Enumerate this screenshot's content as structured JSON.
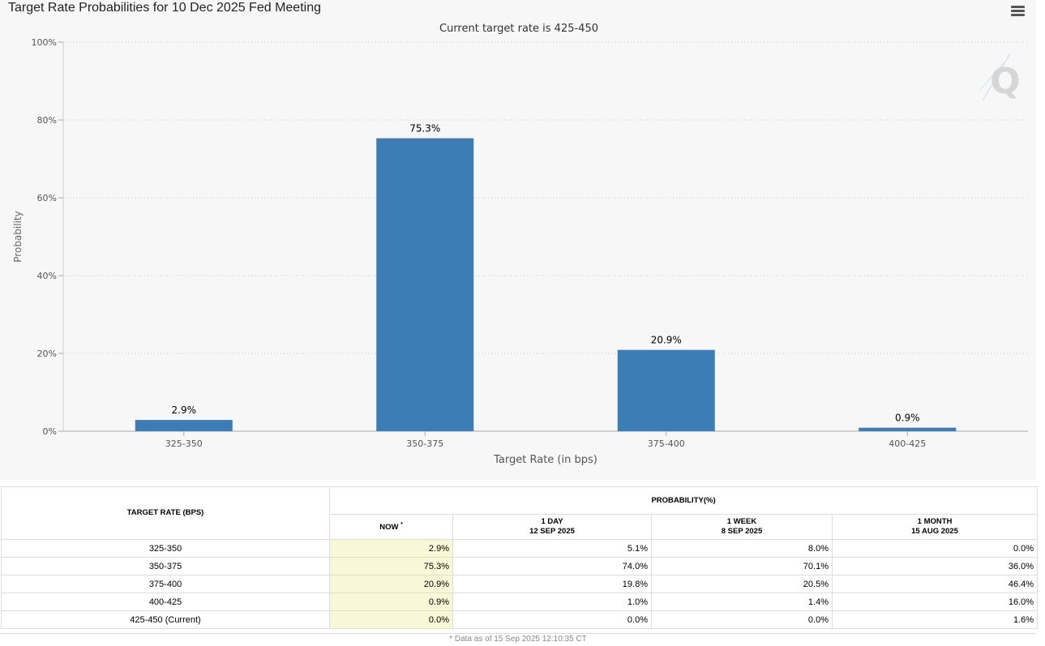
{
  "chart_data": {
    "type": "bar",
    "title": "Target Rate Probabilities for 10 Dec 2025 Fed Meeting",
    "subtitle": "Current target rate is 425-450",
    "categories": [
      "325-350",
      "350-375",
      "375-400",
      "400-425"
    ],
    "values": [
      2.9,
      75.3,
      20.9,
      0.9
    ],
    "data_labels": [
      "2.9%",
      "75.3%",
      "20.9%",
      "0.9%"
    ],
    "xlabel": "Target Rate (in bps)",
    "ylabel": "Probability",
    "ylim": [
      0,
      100
    ],
    "yticks": [
      0,
      20,
      40,
      60,
      80,
      100
    ],
    "ytick_labels": [
      "0%",
      "20%",
      "40%",
      "60%",
      "80%",
      "100%"
    ],
    "grid": true,
    "bar_color": "#3d7db5"
  },
  "watermark": "Q",
  "table": {
    "target_rate_header": "TARGET RATE (BPS)",
    "probability_header": "PROBABILITY(%)",
    "col_now": "NOW",
    "col_now_mark": "*",
    "col_1day": "1 DAY",
    "col_1day_date": "12 SEP 2025",
    "col_1week": "1 WEEK",
    "col_1week_date": "8 SEP 2025",
    "col_1month": "1 MONTH",
    "col_1month_date": "15 AUG 2025",
    "rows": [
      {
        "rate": "325-350",
        "now": "2.9%",
        "day": "5.1%",
        "week": "8.0%",
        "month": "0.0%"
      },
      {
        "rate": "350-375",
        "now": "75.3%",
        "day": "74.0%",
        "week": "70.1%",
        "month": "36.0%"
      },
      {
        "rate": "375-400",
        "now": "20.9%",
        "day": "19.8%",
        "week": "20.5%",
        "month": "46.4%"
      },
      {
        "rate": "400-425",
        "now": "0.9%",
        "day": "1.0%",
        "week": "1.4%",
        "month": "16.0%"
      },
      {
        "rate": "425-450 (Current)",
        "now": "0.0%",
        "day": "0.0%",
        "week": "0.0%",
        "month": "1.6%"
      }
    ],
    "footnote": "* Data as of 15 Sep 2025 12:10:35 CT"
  }
}
